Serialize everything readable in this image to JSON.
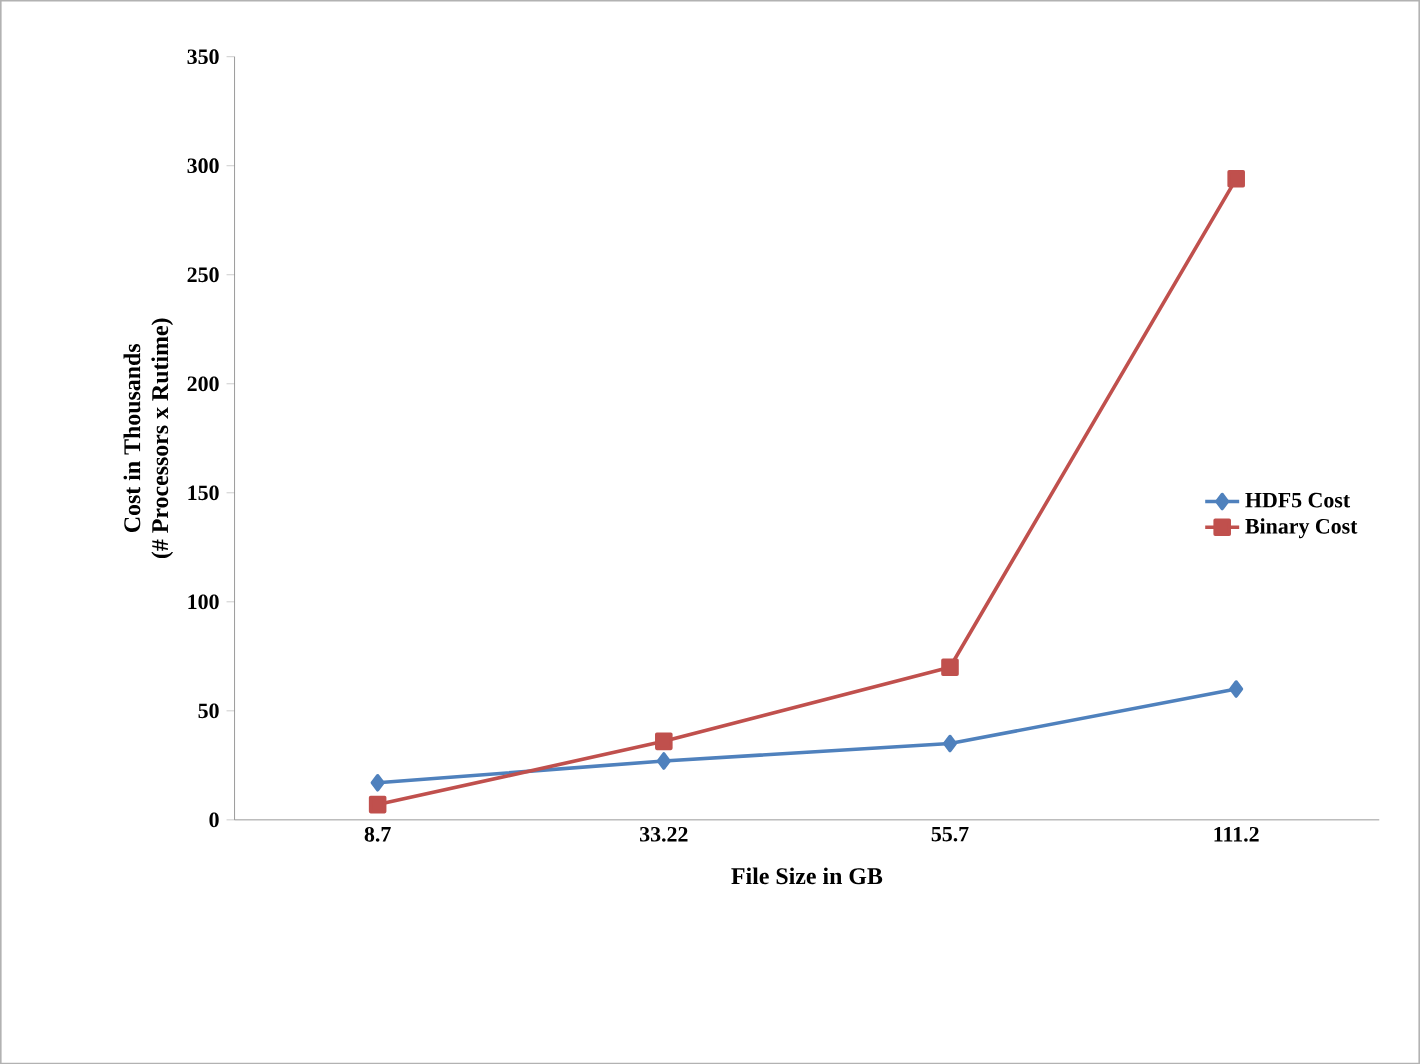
{
  "chart_data": {
    "type": "line",
    "xlabel": "File Size in GB",
    "ylabel": "Cost in Thousands\n(# Processors x Rutime)",
    "categories": [
      "8.7",
      "33.22",
      "55.7",
      "111.2"
    ],
    "series": [
      {
        "name": "HDF5 Cost",
        "color": "#4f81bd",
        "marker": "diamond",
        "values": [
          17,
          27,
          35,
          60
        ]
      },
      {
        "name": "Binary Cost",
        "color": "#c0504d",
        "marker": "square",
        "values": [
          7,
          36,
          70,
          294
        ]
      }
    ],
    "ylim": [
      0,
      350
    ],
    "yticks": [
      0,
      50,
      100,
      150,
      200,
      250,
      300,
      350
    ],
    "grid": false,
    "legend": "right",
    "line_style": "solid"
  }
}
